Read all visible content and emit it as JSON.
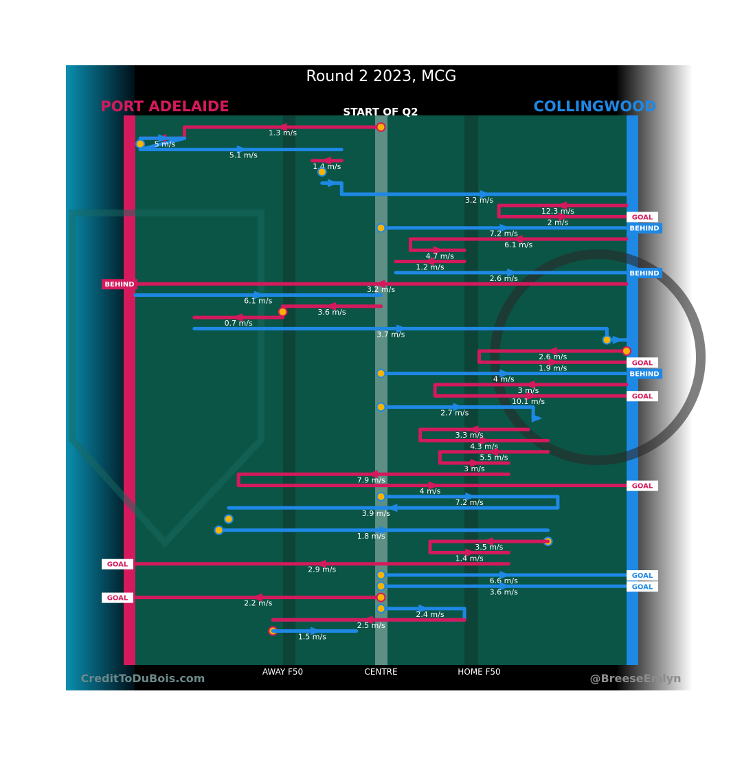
{
  "header": {
    "title": "Round 2 2023, MCG",
    "subtitle": "START OF Q2",
    "left_team": "PORT ADELAIDE",
    "right_team": "COLLINGWOOD",
    "left_credit": "CreditToDuBois.com",
    "right_credit": "@BreeseEmlyn"
  },
  "colors": {
    "port": "#d41a5c",
    "collingwood": "#1e88e5",
    "field": "#0a5546",
    "dot_fill": "#f5b400"
  },
  "chart_data": {
    "type": "flow",
    "x_axis": {
      "range": [
        0,
        100
      ],
      "ticks": [
        {
          "label": "AWAY F50",
          "x": 30
        },
        {
          "label": "CENTRE",
          "x": 50
        },
        {
          "label": "HOME F50",
          "x": 70
        }
      ]
    },
    "chains": [
      {
        "team": "port",
        "segments": [
          {
            "y": 0,
            "x_from": 50,
            "x_to": 10
          },
          {
            "y": 1,
            "x_from": 10,
            "x_to": 1
          }
        ],
        "speeds": [
          {
            "y": 0,
            "x": 30,
            "label": "1.3 m/s"
          }
        ],
        "start_dot": {
          "y": 0,
          "x": 50
        }
      },
      {
        "team": "collingwood",
        "start_dot": {
          "y": 1.5,
          "x": 1
        },
        "segments": [
          {
            "y": 1,
            "x_from": 1,
            "x_to": 10
          },
          {
            "y": 2,
            "x_from": 1,
            "x_to": 42
          }
        ],
        "speeds": [
          {
            "y": 1,
            "x": 6,
            "label": "5 m/s"
          },
          {
            "y": 2,
            "x": 22,
            "label": "5.1 m/s"
          }
        ]
      },
      {
        "team": "port",
        "segments": [
          {
            "y": 3,
            "x_from": 42,
            "x_to": 36
          }
        ],
        "speeds": [
          {
            "y": 3,
            "x": 39,
            "label": "1.4 m/s"
          }
        ]
      },
      {
        "team": "collingwood",
        "start_dot": {
          "y": 4,
          "x": 38
        },
        "segments": [
          {
            "y": 5,
            "x_from": 38,
            "x_to": 42
          },
          {
            "y": 6,
            "x_from": 42,
            "x_to": 100
          }
        ],
        "speeds": [
          {
            "y": 6,
            "x": 70,
            "label": "3.2 m/s"
          }
        ]
      },
      {
        "team": "port",
        "segments": [
          {
            "y": 7,
            "x_from": 100,
            "x_to": 74
          },
          {
            "y": 8,
            "x_from": 74,
            "x_to": 100
          }
        ],
        "speeds": [
          {
            "y": 7,
            "x": 86,
            "label": "12.3 m/s"
          },
          {
            "y": 8,
            "x": 86,
            "label": "2 m/s"
          }
        ],
        "end_label": {
          "y": 8,
          "side": "right",
          "text": "GOAL",
          "style": "white"
        }
      },
      {
        "team": "collingwood",
        "start_dot": {
          "y": 9,
          "x": 50
        },
        "segments": [
          {
            "y": 9,
            "x_from": 50,
            "x_to": 100
          }
        ],
        "speeds": [
          {
            "y": 9,
            "x": 75,
            "label": "7.2 m/s"
          }
        ],
        "end_label": {
          "y": 9,
          "side": "right",
          "text": "BEHIND",
          "style": "blue"
        }
      },
      {
        "team": "port",
        "segments": [
          {
            "y": 10,
            "x_from": 100,
            "x_to": 56
          },
          {
            "y": 11,
            "x_from": 56,
            "x_to": 67
          }
        ],
        "speeds": [
          {
            "y": 10,
            "x": 78,
            "label": "6.1 m/s"
          },
          {
            "y": 11,
            "x": 62,
            "label": "4.7 m/s"
          }
        ]
      },
      {
        "team": "port",
        "segments": [
          {
            "y": 12,
            "x_from": 67,
            "x_to": 53
          }
        ],
        "speeds": [
          {
            "y": 12,
            "x": 60,
            "label": "1.2 m/s"
          }
        ]
      },
      {
        "team": "collingwood",
        "segments": [
          {
            "y": 13,
            "x_from": 53,
            "x_to": 100
          }
        ],
        "speeds": [
          {
            "y": 13,
            "x": 75,
            "label": "2.6 m/s"
          }
        ],
        "end_label": {
          "y": 13,
          "side": "right",
          "text": "BEHIND",
          "style": "blue"
        }
      },
      {
        "team": "port",
        "segments": [
          {
            "y": 14,
            "x_from": 100,
            "x_to": 0
          }
        ],
        "speeds": [
          {
            "y": 14,
            "x": 50,
            "label": "3.2 m/s"
          }
        ],
        "end_label": {
          "y": 14,
          "side": "left",
          "text": "BEHIND",
          "style": "pink"
        }
      },
      {
        "team": "collingwood",
        "segments": [
          {
            "y": 15,
            "x_from": 0,
            "x_to": 50
          }
        ],
        "speeds": [
          {
            "y": 15,
            "x": 25,
            "label": "6.1 m/s"
          }
        ]
      },
      {
        "team": "port",
        "segments": [
          {
            "y": 16,
            "x_from": 50,
            "x_to": 30
          }
        ],
        "speeds": [
          {
            "y": 16,
            "x": 40,
            "label": "3.6 m/s"
          }
        ],
        "end_dot": {
          "y": 16.5,
          "x": 30
        }
      },
      {
        "team": "port",
        "segments": [
          {
            "y": 17,
            "x_from": 30,
            "x_to": 12
          }
        ],
        "speeds": [
          {
            "y": 17,
            "x": 21,
            "label": "0.7 m/s"
          }
        ]
      },
      {
        "team": "collingwood",
        "segments": [
          {
            "y": 18,
            "x_from": 12,
            "x_to": 96
          },
          {
            "y": 19,
            "x_from": 96,
            "x_to": 100
          }
        ],
        "speeds": [
          {
            "y": 18,
            "x": 52,
            "label": "3.7 m/s"
          }
        ],
        "start_dot": {
          "y": 19,
          "x": 96
        }
      },
      {
        "team": "port",
        "start_dot": {
          "y": 20,
          "x": 100
        },
        "segments": [
          {
            "y": 20,
            "x_from": 100,
            "x_to": 70
          },
          {
            "y": 21,
            "x_from": 70,
            "x_to": 100
          }
        ],
        "speeds": [
          {
            "y": 20,
            "x": 85,
            "label": "2.6 m/s"
          },
          {
            "y": 21,
            "x": 85,
            "label": "1.9 m/s"
          }
        ],
        "end_label": {
          "y": 21,
          "side": "right",
          "text": "GOAL",
          "style": "white"
        }
      },
      {
        "team": "collingwood",
        "start_dot": {
          "y": 22,
          "x": 50
        },
        "segments": [
          {
            "y": 22,
            "x_from": 50,
            "x_to": 100
          }
        ],
        "speeds": [
          {
            "y": 22,
            "x": 75,
            "label": "4 m/s"
          }
        ],
        "end_label": {
          "y": 22,
          "side": "right",
          "text": "BEHIND",
          "style": "blue"
        }
      },
      {
        "team": "port",
        "segments": [
          {
            "y": 23,
            "x_from": 100,
            "x_to": 61
          },
          {
            "y": 24,
            "x_from": 61,
            "x_to": 100
          }
        ],
        "speeds": [
          {
            "y": 23,
            "x": 80,
            "label": "3 m/s"
          },
          {
            "y": 24,
            "x": 80,
            "label": "10.1 m/s"
          }
        ],
        "end_label": {
          "y": 24,
          "side": "right",
          "text": "GOAL",
          "style": "white"
        }
      },
      {
        "team": "collingwood",
        "start_dot": {
          "y": 25,
          "x": 50
        },
        "segments": [
          {
            "y": 25,
            "x_from": 50,
            "x_to": 81
          },
          {
            "y": 26,
            "x_from": 81,
            "x_to": 82
          }
        ],
        "speeds": [
          {
            "y": 25,
            "x": 65,
            "label": "2.7 m/s"
          }
        ]
      },
      {
        "team": "port",
        "segments": [
          {
            "y": 27,
            "x_from": 80,
            "x_to": 58
          },
          {
            "y": 28,
            "x_from": 58,
            "x_to": 84
          }
        ],
        "speeds": [
          {
            "y": 27,
            "x": 68,
            "label": "3.3 m/s"
          },
          {
            "y": 28,
            "x": 71,
            "label": "4.3 m/s"
          }
        ]
      },
      {
        "team": "port",
        "segments": [
          {
            "y": 29,
            "x_from": 84,
            "x_to": 62
          },
          {
            "y": 30,
            "x_from": 62,
            "x_to": 76
          }
        ],
        "speeds": [
          {
            "y": 29,
            "x": 73,
            "label": "5.5 m/s"
          },
          {
            "y": 30,
            "x": 69,
            "label": "3 m/s"
          }
        ]
      },
      {
        "team": "port",
        "segments": [
          {
            "y": 31,
            "x_from": 76,
            "x_to": 21
          },
          {
            "y": 32,
            "x_from": 21,
            "x_to": 100
          }
        ],
        "speeds": [
          {
            "y": 31,
            "x": 48,
            "label": "7.9 m/s"
          },
          {
            "y": 32,
            "x": 60,
            "label": "4 m/s"
          }
        ],
        "end_label": {
          "y": 32,
          "side": "right",
          "text": "GOAL",
          "style": "white"
        }
      },
      {
        "team": "collingwood",
        "start_dot": {
          "y": 33,
          "x": 50
        },
        "segments": [
          {
            "y": 33,
            "x_from": 50,
            "x_to": 86
          },
          {
            "y": 34,
            "x_from": 86,
            "x_to": 19
          }
        ],
        "speeds": [
          {
            "y": 33,
            "x": 68,
            "label": "7.2 m/s"
          },
          {
            "y": 34,
            "x": 49,
            "label": "3.9 m/s"
          }
        ],
        "end_dot": {
          "y": 35,
          "x": 19
        }
      },
      {
        "team": "collingwood",
        "start_dot": {
          "y": 36,
          "x": 17
        },
        "segments": [
          {
            "y": 36,
            "x_from": 17,
            "x_to": 84
          }
        ],
        "speeds": [
          {
            "y": 36,
            "x": 48,
            "label": "1.8 m/s"
          }
        ],
        "end_dot": {
          "y": 37,
          "x": 84
        }
      },
      {
        "team": "port",
        "segments": [
          {
            "y": 37,
            "x_from": 84,
            "x_to": 60
          },
          {
            "y": 38,
            "x_from": 60,
            "x_to": 76
          }
        ],
        "speeds": [
          {
            "y": 37,
            "x": 72,
            "label": "3.5 m/s"
          },
          {
            "y": 38,
            "x": 68,
            "label": "1.4 m/s"
          }
        ]
      },
      {
        "team": "port",
        "segments": [
          {
            "y": 39,
            "x_from": 76,
            "x_to": 0
          }
        ],
        "speeds": [
          {
            "y": 39,
            "x": 38,
            "label": "2.9 m/s"
          }
        ],
        "end_label": {
          "y": 39,
          "side": "left",
          "text": "GOAL",
          "style": "white"
        }
      },
      {
        "team": "collingwood",
        "start_dot": {
          "y": 40,
          "x": 50
        },
        "segments": [
          {
            "y": 40,
            "x_from": 50,
            "x_to": 100
          }
        ],
        "speeds": [
          {
            "y": 40,
            "x": 75,
            "label": "6.6 m/s"
          }
        ],
        "end_label": {
          "y": 40,
          "side": "right",
          "text": "GOAL",
          "style": "white"
        }
      },
      {
        "team": "collingwood",
        "start_dot": {
          "y": 41,
          "x": 50
        },
        "segments": [
          {
            "y": 41,
            "x_from": 50,
            "x_to": 100
          }
        ],
        "speeds": [
          {
            "y": 41,
            "x": 75,
            "label": "3.6 m/s"
          }
        ],
        "end_label": {
          "y": 41,
          "side": "right",
          "text": "GOAL",
          "style": "white"
        }
      },
      {
        "team": "port",
        "start_dot": {
          "y": 42,
          "x": 50
        },
        "segments": [
          {
            "y": 42,
            "x_from": 50,
            "x_to": 0
          }
        ],
        "speeds": [
          {
            "y": 42,
            "x": 25,
            "label": "2.2 m/s"
          }
        ],
        "end_label": {
          "y": 42,
          "side": "left",
          "text": "GOAL",
          "style": "white"
        }
      },
      {
        "team": "collingwood",
        "start_dot": {
          "y": 43,
          "x": 50
        },
        "segments": [
          {
            "y": 43,
            "x_from": 50,
            "x_to": 67
          },
          {
            "y": 44,
            "x_from": 67,
            "x_to": 28
          }
        ],
        "speeds": [
          {
            "y": 43,
            "x": 60,
            "label": "2.4 m/s"
          }
        ]
      },
      {
        "team": "port",
        "segments": [
          {
            "y": 44,
            "x_from": 67,
            "x_to": 28
          }
        ],
        "speeds": [
          {
            "y": 44,
            "x": 48,
            "label": "2.5 m/s"
          }
        ],
        "start_dot": {
          "y": 45,
          "x": 28
        }
      },
      {
        "team": "collingwood",
        "segments": [
          {
            "y": 45,
            "x_from": 28,
            "x_to": 45
          }
        ],
        "speeds": [
          {
            "y": 45,
            "x": 36,
            "label": "1.5 m/s"
          }
        ]
      }
    ]
  }
}
